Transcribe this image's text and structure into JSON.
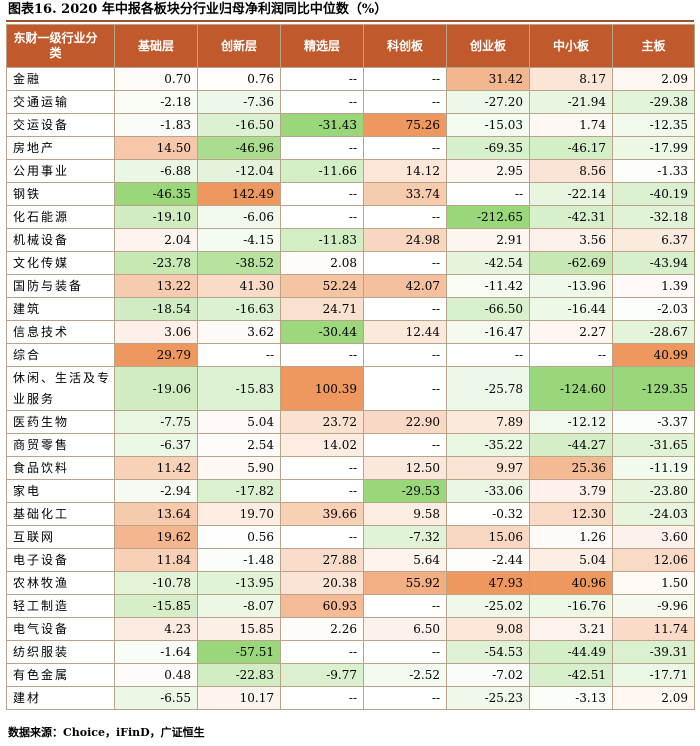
{
  "title": "图表16. 2020 年中报各板块分行业归母净利润同比中位数（%）",
  "source": "数据来源：Choice，iFinD，广证恒生",
  "table": {
    "headers": [
      "东财一级行业分类",
      "基础层",
      "创新层",
      "精选层",
      "科创板",
      "创业板",
      "中小板",
      "主板"
    ],
    "rows": [
      {
        "name": "金融",
        "values": [
          "0.70",
          "0.76",
          "--",
          "--",
          "31.42",
          "8.17",
          "2.09"
        ]
      },
      {
        "name": "交通运输",
        "values": [
          "-2.18",
          "-7.36",
          "--",
          "--",
          "-27.20",
          "-21.94",
          "-29.38"
        ]
      },
      {
        "name": "交运设备",
        "values": [
          "-1.83",
          "-16.50",
          "-31.43",
          "75.26",
          "-15.03",
          "1.74",
          "-12.35"
        ]
      },
      {
        "name": "房地产",
        "values": [
          "14.50",
          "-46.96",
          "--",
          "--",
          "-69.35",
          "-46.17",
          "-17.99"
        ]
      },
      {
        "name": "公用事业",
        "values": [
          "-6.88",
          "-12.04",
          "-11.66",
          "14.12",
          "2.95",
          "8.56",
          "-1.33"
        ]
      },
      {
        "name": "钢铁",
        "values": [
          "-46.35",
          "142.49",
          "--",
          "33.74",
          "--",
          "-22.14",
          "-40.19"
        ]
      },
      {
        "name": "化石能源",
        "values": [
          "-19.10",
          "-6.06",
          "--",
          "--",
          "-212.65",
          "-42.31",
          "-32.18"
        ]
      },
      {
        "name": "机械设备",
        "values": [
          "2.04",
          "-4.15",
          "-11.83",
          "24.98",
          "2.91",
          "3.56",
          "6.37"
        ]
      },
      {
        "name": "文化传媒",
        "values": [
          "-23.78",
          "-38.52",
          "2.08",
          "--",
          "-42.54",
          "-62.69",
          "-43.94"
        ]
      },
      {
        "name": "国防与装备",
        "values": [
          "13.22",
          "41.30",
          "52.24",
          "42.07",
          "-11.42",
          "-13.96",
          "1.39"
        ]
      },
      {
        "name": "建筑",
        "values": [
          "-18.54",
          "-16.63",
          "24.71",
          "--",
          "-66.50",
          "-16.44",
          "-2.03"
        ]
      },
      {
        "name": "信息技术",
        "values": [
          "3.06",
          "3.62",
          "-30.44",
          "12.44",
          "-16.47",
          "2.27",
          "-28.67"
        ]
      },
      {
        "name": "综合",
        "values": [
          "29.79",
          "--",
          "--",
          "--",
          "--",
          "--",
          "40.99"
        ]
      },
      {
        "name": "休闲、生活及专业服务",
        "values": [
          "-19.06",
          "-15.83",
          "100.39",
          "--",
          "-25.78",
          "-124.60",
          "-129.35"
        ]
      },
      {
        "name": "医药生物",
        "values": [
          "-7.75",
          "5.04",
          "23.72",
          "22.90",
          "7.89",
          "-12.12",
          "-3.37"
        ]
      },
      {
        "name": "商贸零售",
        "values": [
          "-6.37",
          "2.54",
          "14.02",
          "--",
          "-35.22",
          "-44.27",
          "-31.65"
        ]
      },
      {
        "name": "食品饮料",
        "values": [
          "11.42",
          "5.90",
          "--",
          "12.50",
          "9.97",
          "25.36",
          "-11.19"
        ]
      },
      {
        "name": "家电",
        "values": [
          "-2.94",
          "-17.82",
          "--",
          "-29.53",
          "-33.06",
          "3.79",
          "-23.80"
        ]
      },
      {
        "name": "基础化工",
        "values": [
          "13.64",
          "19.70",
          "39.66",
          "9.58",
          "-0.32",
          "12.30",
          "-24.03"
        ]
      },
      {
        "name": "互联网",
        "values": [
          "19.62",
          "0.56",
          "--",
          "-7.32",
          "15.06",
          "1.26",
          "3.60"
        ]
      },
      {
        "name": "电子设备",
        "values": [
          "11.84",
          "-1.48",
          "27.88",
          "5.64",
          "-2.44",
          "5.04",
          "12.06"
        ]
      },
      {
        "name": "农林牧渔",
        "values": [
          "-10.78",
          "-13.95",
          "20.38",
          "55.92",
          "47.93",
          "40.96",
          "1.50"
        ]
      },
      {
        "name": "轻工制造",
        "values": [
          "-15.85",
          "-8.07",
          "60.93",
          "--",
          "-25.02",
          "-16.76",
          "-9.96"
        ]
      },
      {
        "name": "电气设备",
        "values": [
          "4.23",
          "15.85",
          "2.26",
          "6.50",
          "9.08",
          "3.21",
          "11.74"
        ]
      },
      {
        "name": "纺织服装",
        "values": [
          "-1.64",
          "-57.51",
          "--",
          "--",
          "-54.53",
          "-44.49",
          "-39.31"
        ]
      },
      {
        "name": "有色金属",
        "values": [
          "0.48",
          "-22.83",
          "-9.77",
          "-2.52",
          "-7.02",
          "-42.51",
          "-17.71"
        ]
      },
      {
        "name": "建材",
        "values": [
          "-6.55",
          "10.17",
          "--",
          "--",
          "-25.23",
          "-3.13",
          "2.09"
        ]
      }
    ]
  },
  "colors": {
    "header_bg": "#c0592b",
    "header_text": "#ffffff",
    "positive_max": "#ec8c4d",
    "negative_max": "#8fd26b",
    "neutral": "#ffffff",
    "title_rule": "#a0522d"
  }
}
